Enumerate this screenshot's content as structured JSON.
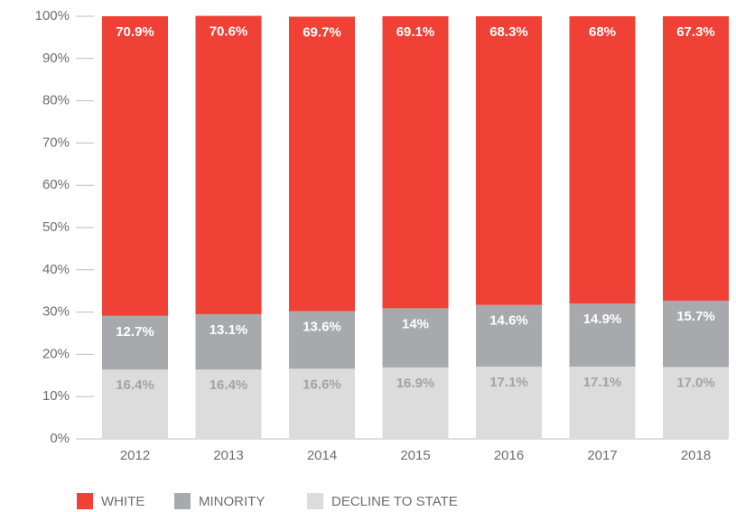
{
  "chart_data": {
    "type": "stacked_bar",
    "categories": [
      "2012",
      "2013",
      "2014",
      "2015",
      "2016",
      "2017",
      "2018"
    ],
    "series": [
      {
        "name": "DECLINE TO STATE",
        "color": "#dcdcdc",
        "label_color": "#a3a3a3",
        "values": [
          16.4,
          16.4,
          16.6,
          16.9,
          17.1,
          17.1,
          17.0
        ],
        "value_labels": [
          "16.4%",
          "16.4%",
          "16.6%",
          "16.9%",
          "17.1%",
          "17.1%",
          "17.0%"
        ]
      },
      {
        "name": "MINORITY",
        "color": "#a7a9ac",
        "label_color": "#ffffff",
        "values": [
          12.7,
          13.1,
          13.6,
          14,
          14.6,
          14.9,
          15.7
        ],
        "value_labels": [
          "12.7%",
          "13.1%",
          "13.6%",
          "14%",
          "14.6%",
          "14.9%",
          "15.7%"
        ]
      },
      {
        "name": "WHITE",
        "color": "#ef4136",
        "label_color": "#ffffff",
        "values": [
          70.9,
          70.6,
          69.7,
          69.1,
          68.3,
          68,
          67.3
        ],
        "value_labels": [
          "70.9%",
          "70.6%",
          "69.7%",
          "69.1%",
          "68.3%",
          "68%",
          "67.3%"
        ]
      }
    ],
    "ylim": [
      0,
      100
    ],
    "yticks": [
      {
        "value": 0,
        "label": "0%"
      },
      {
        "value": 10,
        "label": "10%"
      },
      {
        "value": 20,
        "label": "20%"
      },
      {
        "value": 30,
        "label": "30%"
      },
      {
        "value": 40,
        "label": "40%"
      },
      {
        "value": 50,
        "label": "50%"
      },
      {
        "value": 60,
        "label": "60%"
      },
      {
        "value": 70,
        "label": "70%"
      },
      {
        "value": 80,
        "label": "80%"
      },
      {
        "value": 90,
        "label": "90%"
      },
      {
        "value": 100,
        "label": "100%"
      }
    ],
    "legend": "bottom"
  }
}
